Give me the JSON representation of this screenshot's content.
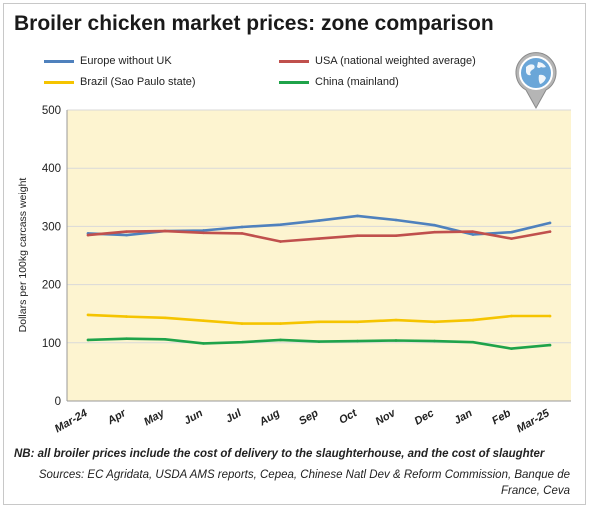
{
  "chart_data": {
    "type": "line",
    "title": "Broiler chicken market prices: zone comparison",
    "xlabel": "",
    "ylabel": "Dollars per 100kg carcass weight",
    "ylim": [
      0,
      500
    ],
    "yticks": [
      "0",
      "100",
      "200",
      "300",
      "400",
      "500"
    ],
    "grid": true,
    "legend_position": "top",
    "categories": [
      "Mar-24",
      "Apr",
      "May",
      "Jun",
      "Jul",
      "Aug",
      "Sep",
      "Oct",
      "Nov",
      "Dec",
      "Jan",
      "Feb",
      "Mar-25"
    ],
    "series": [
      {
        "name": "Europe without UK",
        "color": "#4f81bd",
        "values": [
          288,
          285,
          292,
          293,
          299,
          303,
          310,
          318,
          311,
          302,
          286,
          290,
          306
        ]
      },
      {
        "name": "USA (national weighted average)",
        "color": "#c0504d",
        "values": [
          285,
          291,
          292,
          289,
          288,
          274,
          279,
          284,
          284,
          290,
          291,
          279,
          291
        ]
      },
      {
        "name": "Brazil (Sao Paulo state)",
        "color": "#f5c400",
        "values": [
          148,
          145,
          143,
          138,
          133,
          133,
          136,
          136,
          139,
          136,
          139,
          146,
          146
        ]
      },
      {
        "name": "China (mainland)",
        "color": "#1fa34a",
        "values": [
          105,
          107,
          106,
          99,
          101,
          105,
          102,
          103,
          104,
          103,
          101,
          90,
          96
        ]
      }
    ]
  },
  "footer": {
    "note": "NB: all broiler prices include the cost of delivery to the slaughterhouse, and the cost of slaughter",
    "sources": "Sources: EC Agridata, USDA AMS reports, Cepea, Chinese Natl Dev & Reform Commission, Banque de France, Ceva"
  },
  "colors": {
    "plot_background": "#fdf4d0",
    "gridline": "#d9d9d9",
    "globe_icon": "#6aa6d8"
  },
  "icons": {
    "corner": "globe-pin-icon"
  }
}
